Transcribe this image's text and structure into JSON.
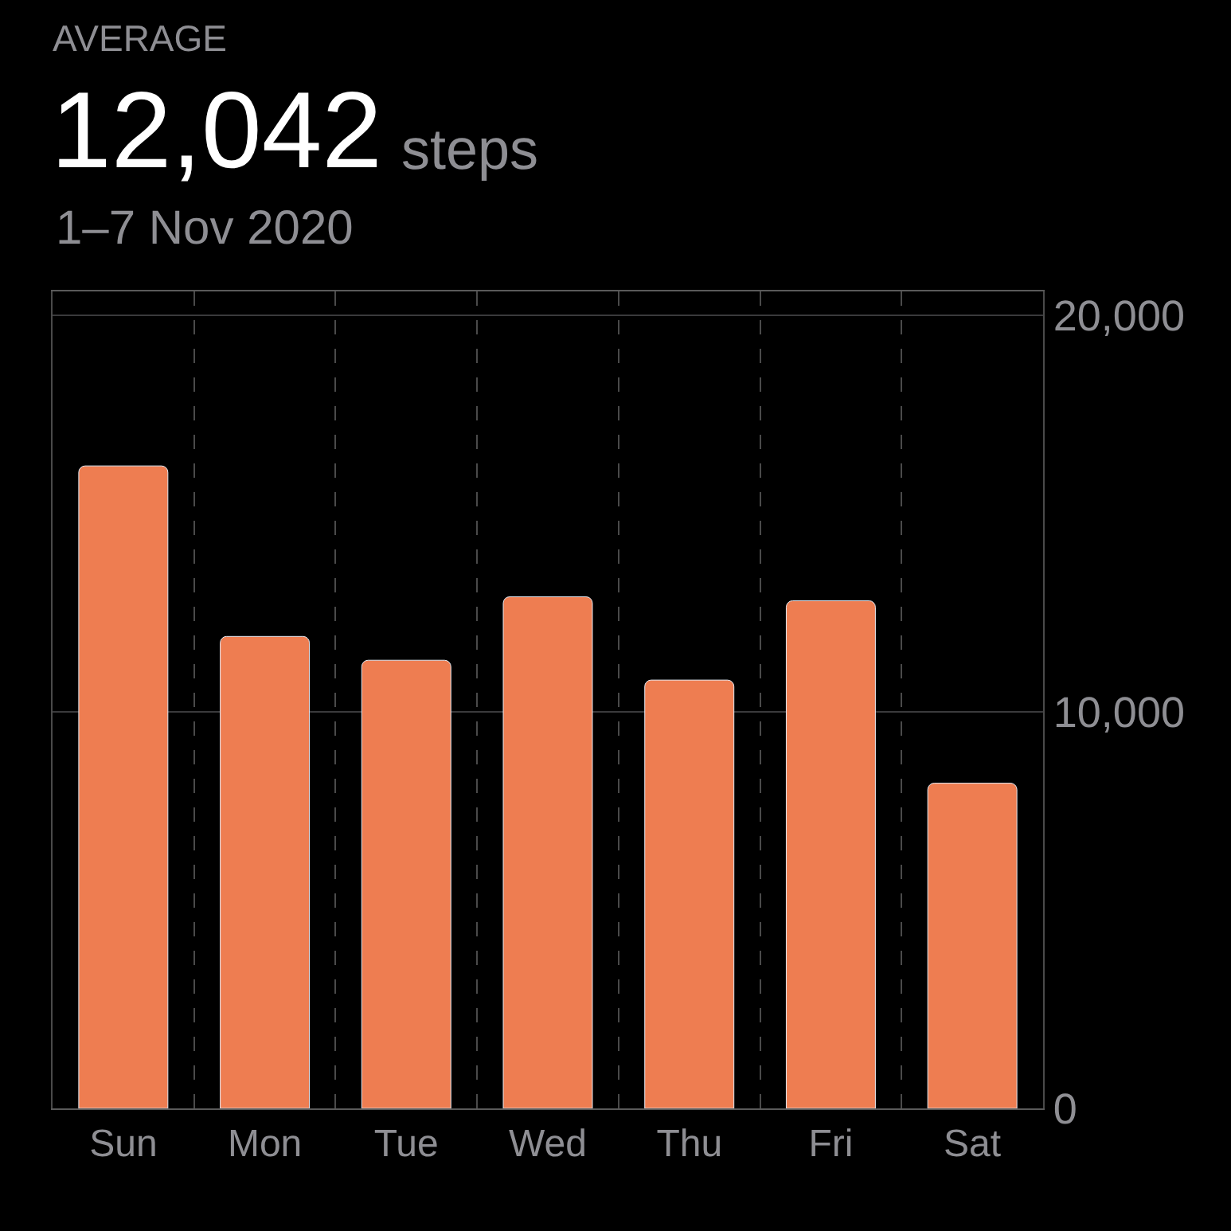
{
  "chart_data": {
    "type": "bar",
    "title": "AVERAGE",
    "subtitle": "1–7 Nov 2020",
    "annotations": [
      "12,042",
      "steps"
    ],
    "categories": [
      "Sun",
      "Mon",
      "Tue",
      "Wed",
      "Thu",
      "Fri",
      "Sat"
    ],
    "values": [
      16200,
      11900,
      11300,
      12900,
      10800,
      12800,
      8200
    ],
    "color": "#ee7d51",
    "ylim": [
      0,
      20600
    ],
    "yticks": [
      0,
      {
        "value": 10000,
        "label": "10,000"
      },
      {
        "value": 20000,
        "label": "20,000"
      }
    ],
    "grid": true
  }
}
